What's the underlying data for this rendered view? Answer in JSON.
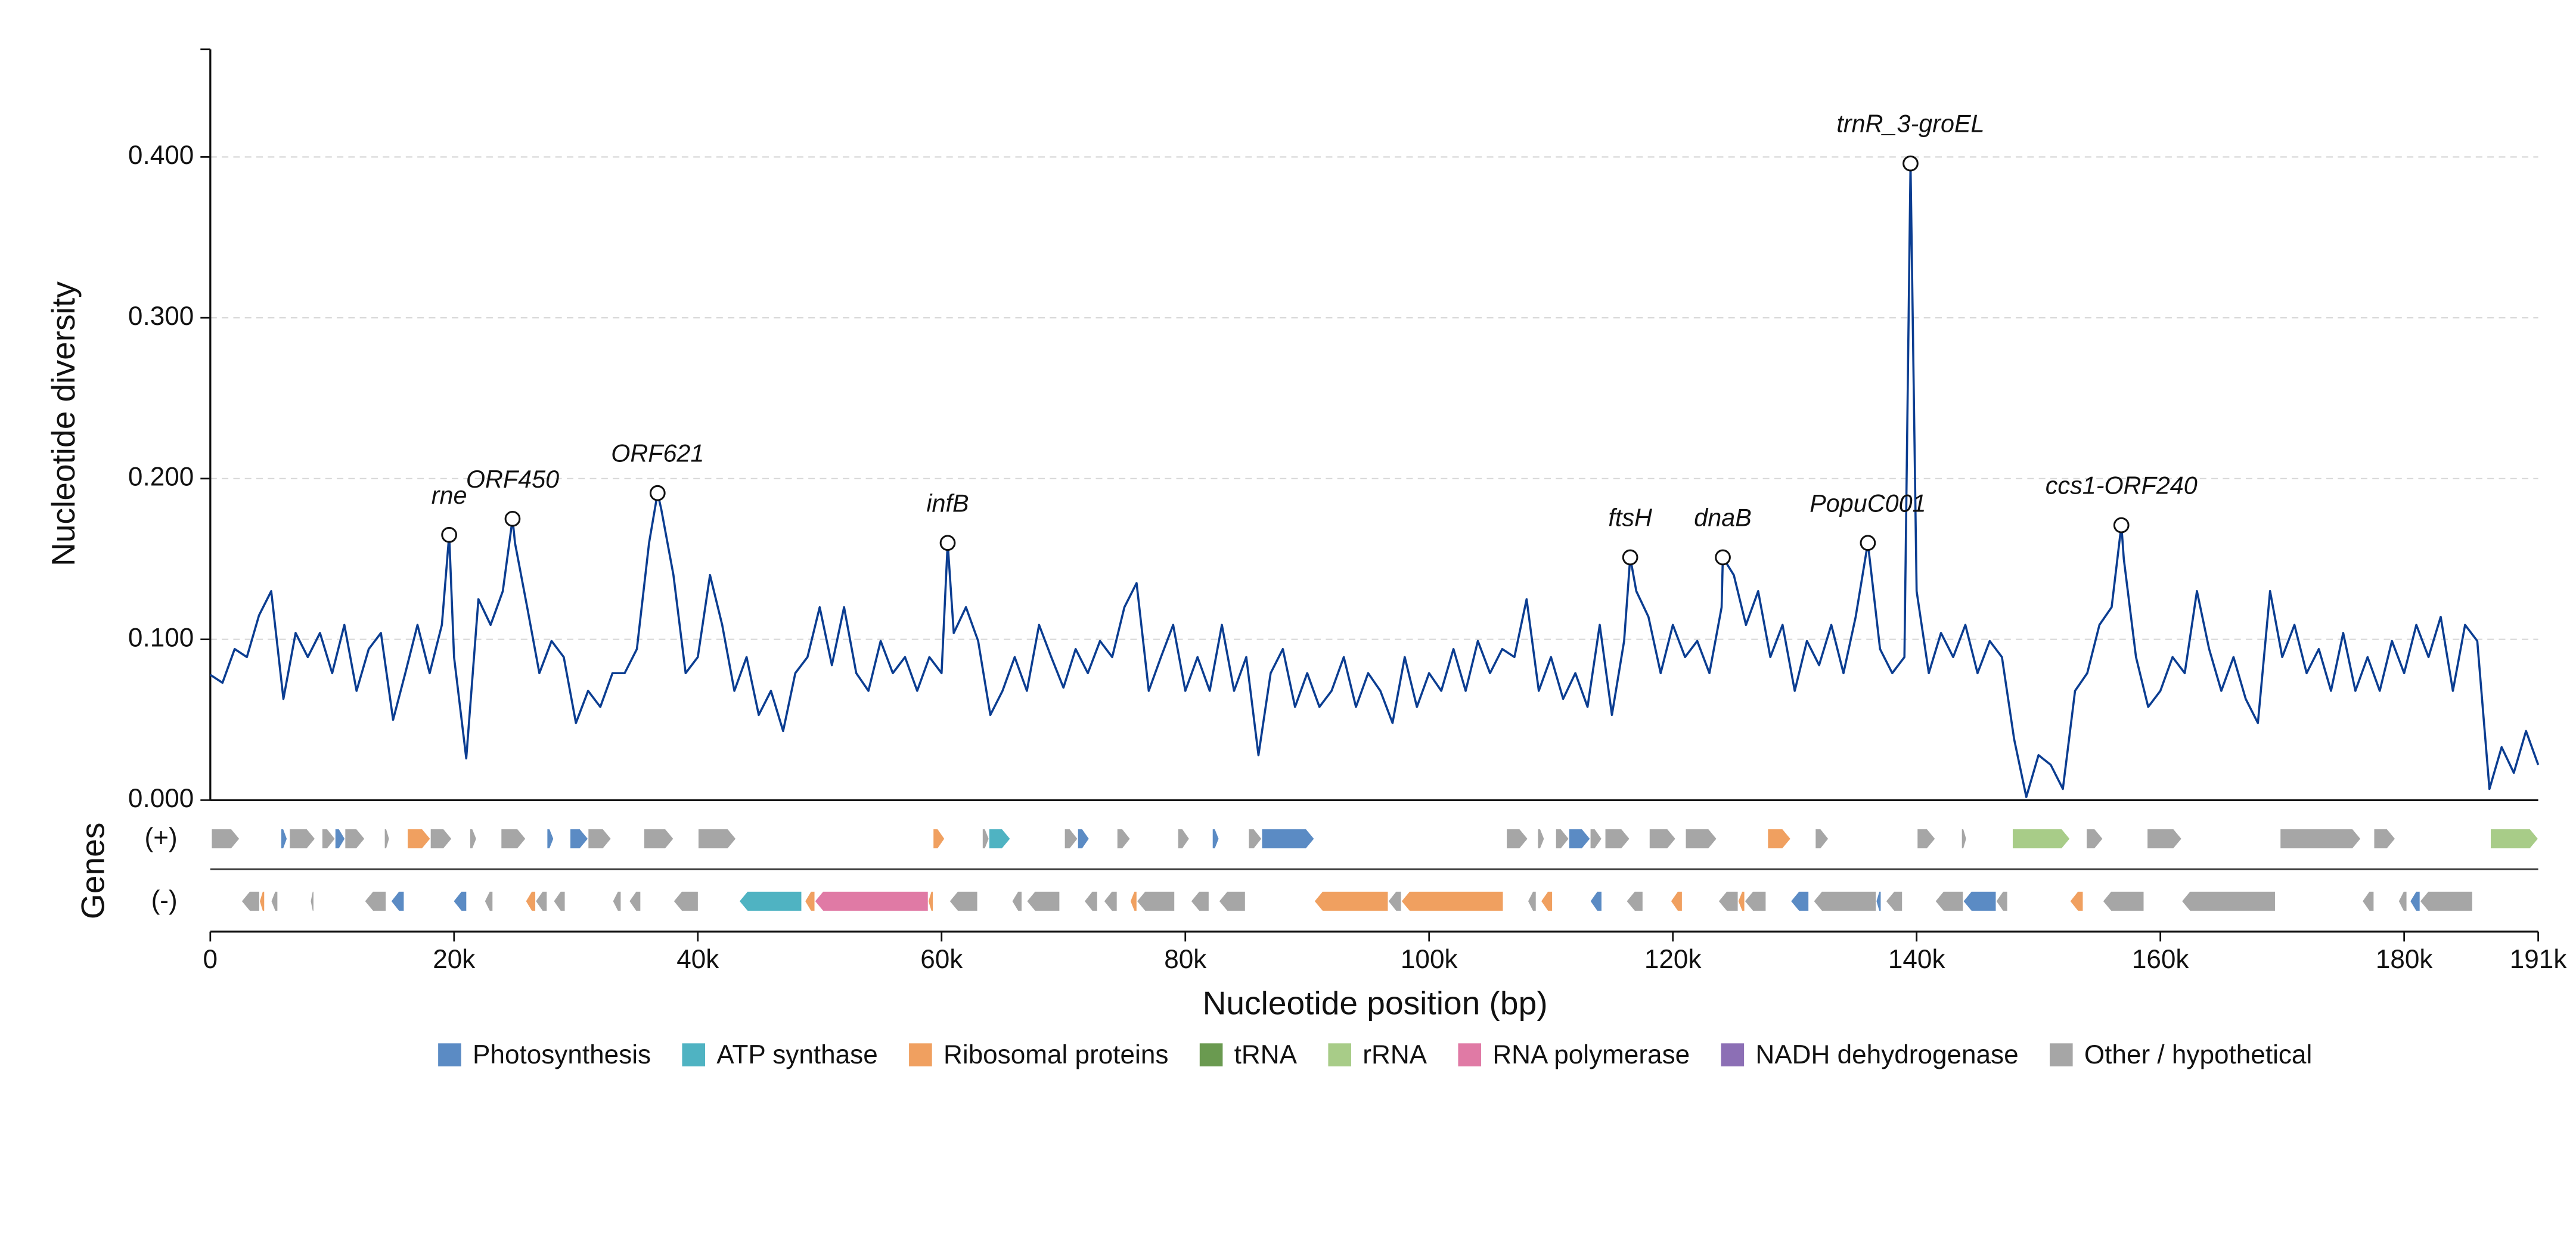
{
  "chart_data": {
    "type": "line",
    "ylabel": "Nucleotide diversity",
    "xlabel": "Nucleotide position (bp)",
    "color": "#0b3d91",
    "grid": true,
    "xlim": [
      0,
      191000
    ],
    "ylim": [
      0,
      0.467
    ],
    "xticks": [
      0,
      {
        "value": 20000,
        "label": "20k"
      },
      {
        "value": 40000,
        "label": "40k"
      },
      {
        "value": 60000,
        "label": "60k"
      },
      {
        "value": 80000,
        "label": "80k"
      },
      {
        "value": 100000,
        "label": "100k"
      },
      {
        "value": 120000,
        "label": "120k"
      },
      {
        "value": 140000,
        "label": "140k"
      },
      {
        "value": 160000,
        "label": "160k"
      },
      {
        "value": 180000,
        "label": "180k"
      },
      {
        "value": 191000,
        "label": "191k"
      }
    ],
    "yticks": [
      {
        "value": 0,
        "label": "0.000"
      },
      {
        "value": 0.1,
        "label": "0.100"
      },
      {
        "value": 0.2,
        "label": "0.200"
      },
      {
        "value": 0.3,
        "label": "0.300"
      },
      {
        "value": 0.4,
        "label": "0.400"
      }
    ],
    "x": [
      0,
      1000,
      2000,
      3000,
      4000,
      5000,
      6000,
      7000,
      8000,
      9000,
      10000,
      11000,
      12000,
      13000,
      14000,
      15000,
      16000,
      17000,
      18000,
      19000,
      19600,
      20000,
      21000,
      22000,
      23000,
      24000,
      24800,
      25000,
      26000,
      27000,
      28000,
      29000,
      30000,
      31000,
      32000,
      33000,
      34000,
      35000,
      36000,
      36700,
      37000,
      38000,
      39000,
      40000,
      41000,
      42000,
      43000,
      44000,
      45000,
      46000,
      47000,
      48000,
      49000,
      50000,
      51000,
      52000,
      53000,
      54000,
      55000,
      56000,
      57000,
      58000,
      59000,
      60000,
      60500,
      61000,
      62000,
      63000,
      64000,
      65000,
      66000,
      67000,
      68000,
      69000,
      70000,
      71000,
      72000,
      73000,
      74000,
      75000,
      76000,
      77000,
      78000,
      79000,
      80000,
      81000,
      82000,
      83000,
      84000,
      85000,
      86000,
      87000,
      88000,
      89000,
      90000,
      91000,
      92000,
      93000,
      94000,
      95000,
      96000,
      97000,
      98000,
      99000,
      100000,
      101000,
      102000,
      103000,
      104000,
      105000,
      106000,
      107000,
      108000,
      109000,
      110000,
      111000,
      112000,
      113000,
      114000,
      115000,
      116000,
      116500,
      117000,
      118000,
      119000,
      120000,
      121000,
      122000,
      123000,
      124000,
      124100,
      125000,
      126000,
      127000,
      128000,
      129000,
      130000,
      131000,
      132000,
      133000,
      134000,
      135000,
      136000,
      137000,
      138000,
      139000,
      139500,
      140000,
      141000,
      142000,
      143000,
      144000,
      145000,
      146000,
      147000,
      148000,
      149000,
      150000,
      151000,
      152000,
      153000,
      154000,
      155000,
      156000,
      156800,
      157000,
      158000,
      159000,
      160000,
      161000,
      162000,
      163000,
      164000,
      165000,
      166000,
      167000,
      168000,
      169000,
      170000,
      171000,
      172000,
      173000,
      174000,
      175000,
      176000,
      177000,
      178000,
      179000,
      180000,
      181000,
      182000,
      183000,
      184000,
      185000,
      186000,
      187000,
      188000,
      189000,
      190000,
      191000
    ],
    "values": [
      0.078,
      0.073,
      0.094,
      0.089,
      0.115,
      0.13,
      0.063,
      0.104,
      0.089,
      0.104,
      0.079,
      0.109,
      0.068,
      0.094,
      0.104,
      0.05,
      0.079,
      0.109,
      0.079,
      0.109,
      0.165,
      0.089,
      0.026,
      0.125,
      0.109,
      0.13,
      0.175,
      0.16,
      0.12,
      0.079,
      0.099,
      0.089,
      0.048,
      0.068,
      0.058,
      0.079,
      0.079,
      0.094,
      0.16,
      0.191,
      0.181,
      0.14,
      0.079,
      0.089,
      0.14,
      0.109,
      0.068,
      0.089,
      0.053,
      0.068,
      0.043,
      0.079,
      0.089,
      0.12,
      0.084,
      0.12,
      0.079,
      0.068,
      0.099,
      0.079,
      0.089,
      0.068,
      0.089,
      0.079,
      0.16,
      0.104,
      0.12,
      0.099,
      0.053,
      0.068,
      0.089,
      0.068,
      0.109,
      0.089,
      0.07,
      0.094,
      0.079,
      0.099,
      0.089,
      0.12,
      0.135,
      0.068,
      0.089,
      0.109,
      0.068,
      0.089,
      0.068,
      0.109,
      0.068,
      0.089,
      0.028,
      0.079,
      0.094,
      0.058,
      0.079,
      0.058,
      0.068,
      0.089,
      0.058,
      0.079,
      0.068,
      0.048,
      0.089,
      0.058,
      0.079,
      0.068,
      0.094,
      0.068,
      0.099,
      0.079,
      0.094,
      0.089,
      0.125,
      0.068,
      0.089,
      0.063,
      0.079,
      0.058,
      0.109,
      0.053,
      0.099,
      0.151,
      0.13,
      0.114,
      0.079,
      0.109,
      0.089,
      0.099,
      0.079,
      0.12,
      0.151,
      0.14,
      0.109,
      0.13,
      0.089,
      0.109,
      0.068,
      0.099,
      0.084,
      0.109,
      0.079,
      0.114,
      0.16,
      0.094,
      0.079,
      0.089,
      0.396,
      0.13,
      0.079,
      0.104,
      0.089,
      0.109,
      0.079,
      0.099,
      0.089,
      0.038,
      0.002,
      0.028,
      0.022,
      0.007,
      0.068,
      0.079,
      0.109,
      0.12,
      0.171,
      0.15,
      0.089,
      0.058,
      0.068,
      0.089,
      0.079,
      0.13,
      0.094,
      0.068,
      0.089,
      0.063,
      0.048,
      0.13,
      0.089,
      0.109,
      0.079,
      0.094,
      0.068,
      0.104,
      0.068,
      0.089,
      0.068,
      0.099,
      0.079,
      0.109,
      0.089,
      0.114,
      0.068,
      0.109,
      0.099,
      0.007,
      0.033,
      0.017,
      0.043,
      0.022
    ],
    "annotations": [
      {
        "label": "rne",
        "x": 19600,
        "y": 0.165
      },
      {
        "label": "ORF450",
        "x": 24800,
        "y": 0.175
      },
      {
        "label": "ORF621",
        "x": 36700,
        "y": 0.191
      },
      {
        "label": "infB",
        "x": 60500,
        "y": 0.16
      },
      {
        "label": "ftsH",
        "x": 116500,
        "y": 0.151
      },
      {
        "label": "dnaB",
        "x": 124100,
        "y": 0.151
      },
      {
        "label": "PopuC001",
        "x": 136000,
        "y": 0.16
      },
      {
        "label": "trnR_3-groEL",
        "x": 139500,
        "y": 0.396
      },
      {
        "label": "ccs1-ORF240",
        "x": 156800,
        "y": 0.171
      }
    ],
    "gene_track_label": "Genes",
    "plus_label": "(+)",
    "minus_label": "(-)",
    "gene_tracks": [
      {
        "name": "Photosynthesis",
        "color": "#5b8bc4",
        "plus": [
          [
            5800,
            6300
          ],
          [
            10240,
            11050
          ],
          [
            27630,
            28170
          ],
          [
            29520,
            31000
          ],
          [
            71170,
            72110
          ],
          [
            82220,
            82760
          ],
          [
            86270,
            90580
          ],
          [
            111470,
            113220
          ]
        ],
        "minus": [
          [
            14830,
            15900
          ],
          [
            19950,
            21030
          ],
          [
            113220,
            114170
          ],
          [
            129670,
            131150
          ],
          [
            136680,
            137080
          ],
          [
            143820,
            146520
          ],
          [
            180490,
            181300
          ]
        ]
      },
      {
        "name": "ATP synthase",
        "color": "#4fb3c2",
        "plus": [
          [
            63890,
            65640
          ]
        ],
        "minus": [
          [
            43400,
            48520
          ]
        ]
      },
      {
        "name": "Ribosomal proteins",
        "color": "#f0a060",
        "plus": [
          [
            16170,
            18060
          ],
          [
            59310,
            60250
          ],
          [
            127780,
            129670
          ]
        ],
        "minus": [
          [
            4040,
            4450
          ],
          [
            25880,
            26690
          ],
          [
            48790,
            49600
          ],
          [
            58900,
            59310
          ],
          [
            75480,
            76020
          ],
          [
            90580,
            96640
          ],
          [
            97720,
            106080
          ],
          [
            109180,
            110120
          ],
          [
            119830,
            120770
          ],
          [
            125350,
            125890
          ],
          [
            152580,
            153660
          ]
        ]
      },
      {
        "name": "tRNA",
        "color": "#6a9a50",
        "plus": [],
        "minus": []
      },
      {
        "name": "rRNA",
        "color": "#a8cc88",
        "plus": [
          [
            147860,
            152580
          ],
          [
            187080,
            191000
          ]
        ],
        "minus": []
      },
      {
        "name": "RNA polymerase",
        "color": "#e07aa5",
        "plus": [],
        "minus": [
          [
            49600,
            58900
          ]
        ]
      },
      {
        "name": "NADH dehydrogenase",
        "color": "#8c6fb5",
        "plus": [],
        "minus": []
      },
      {
        "name": "Other / hypothetical",
        "color": "#a6a6a6",
        "plus": [
          [
            100,
            2400
          ],
          [
            6500,
            8600
          ],
          [
            9170,
            10240
          ],
          [
            11050,
            12670
          ],
          [
            14290,
            14690
          ],
          [
            18060,
            19810
          ],
          [
            21300,
            21840
          ],
          [
            23860,
            25880
          ],
          [
            31000,
            32890
          ],
          [
            35580,
            38010
          ],
          [
            40030,
            43130
          ],
          [
            63350,
            63890
          ],
          [
            70090,
            71170
          ],
          [
            74400,
            75480
          ],
          [
            79390,
            80330
          ],
          [
            85190,
            86270
          ],
          [
            106350,
            108100
          ],
          [
            108910,
            109450
          ],
          [
            110390,
            111470
          ],
          [
            113220,
            114170
          ],
          [
            114440,
            116460
          ],
          [
            118070,
            120230
          ],
          [
            121040,
            123600
          ],
          [
            131690,
            132770
          ],
          [
            140050,
            141530
          ],
          [
            143690,
            144090
          ],
          [
            153930,
            155280
          ],
          [
            158920,
            161750
          ],
          [
            169830,
            176440
          ],
          [
            177520,
            179270
          ]
        ],
        "minus": [
          [
            2560,
            4040
          ],
          [
            4990,
            5530
          ],
          [
            8220,
            8490
          ],
          [
            12670,
            14420
          ],
          [
            22510,
            23180
          ],
          [
            26690,
            27630
          ],
          [
            28170,
            29110
          ],
          [
            33020,
            33700
          ],
          [
            34370,
            35310
          ],
          [
            38010,
            40030
          ],
          [
            60650,
            62950
          ],
          [
            65780,
            66590
          ],
          [
            66990,
            69690
          ],
          [
            71710,
            72790
          ],
          [
            73320,
            74400
          ],
          [
            76020,
            79120
          ],
          [
            80460,
            81940
          ],
          [
            82760,
            84920
          ],
          [
            96640,
            97720
          ],
          [
            108100,
            108780
          ],
          [
            116190,
            117540
          ],
          [
            123740,
            125350
          ],
          [
            125890,
            127640
          ],
          [
            131550,
            136680
          ],
          [
            137480,
            138830
          ],
          [
            141530,
            143820
          ],
          [
            146520,
            147460
          ],
          [
            155280,
            158650
          ],
          [
            161750,
            169430
          ],
          [
            176570,
            177520
          ],
          [
            179540,
            180220
          ],
          [
            181300,
            185610
          ]
        ]
      }
    ]
  }
}
